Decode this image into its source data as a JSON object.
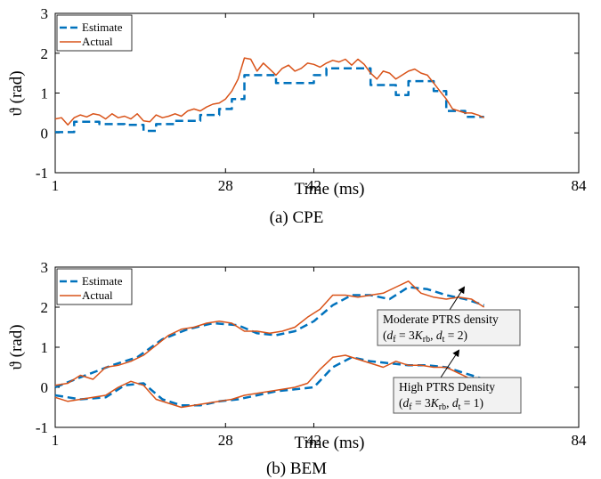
{
  "chart_data": [
    {
      "type": "line",
      "caption": "(a) CPE",
      "xlabel": "Time (ms)",
      "ylabel": "ϑ (rad)",
      "xlim": [
        1,
        84
      ],
      "ylim": [
        -1,
        3
      ],
      "x_ticks": [
        "1",
        "28",
        "42",
        "84"
      ],
      "y_ticks": [
        "-1",
        "0",
        "1",
        "2",
        "3"
      ],
      "grid": false,
      "legend": {
        "position": "top-left",
        "entries": [
          "Estimate",
          "Actual"
        ]
      },
      "series": [
        {
          "name": "Estimate",
          "style": "dashed",
          "color": "#0072BD",
          "points": [
            [
              1,
              0.02
            ],
            [
              4,
              0.02
            ],
            [
              4,
              0.28
            ],
            [
              8,
              0.28
            ],
            [
              8,
              0.22
            ],
            [
              12,
              0.22
            ],
            [
              12,
              0.2
            ],
            [
              15,
              0.2
            ],
            [
              15,
              0.05
            ],
            [
              17,
              0.05
            ],
            [
              17,
              0.22
            ],
            [
              20,
              0.22
            ],
            [
              20,
              0.3
            ],
            [
              24,
              0.3
            ],
            [
              24,
              0.45
            ],
            [
              27,
              0.45
            ],
            [
              27,
              0.6
            ],
            [
              29,
              0.6
            ],
            [
              29,
              0.85
            ],
            [
              31,
              0.85
            ],
            [
              31,
              1.45
            ],
            [
              36,
              1.45
            ],
            [
              36,
              1.25
            ],
            [
              42,
              1.25
            ],
            [
              42,
              1.45
            ],
            [
              44,
              1.45
            ],
            [
              44,
              1.62
            ],
            [
              51,
              1.62
            ],
            [
              51,
              1.2
            ],
            [
              55,
              1.2
            ],
            [
              55,
              0.95
            ],
            [
              57,
              0.95
            ],
            [
              57,
              1.3
            ],
            [
              61,
              1.3
            ],
            [
              61,
              1.05
            ],
            [
              63,
              1.05
            ],
            [
              63,
              0.55
            ],
            [
              66,
              0.55
            ],
            [
              66,
              0.4
            ],
            [
              69,
              0.4
            ]
          ]
        },
        {
          "name": "Actual",
          "style": "solid",
          "color": "#D95319",
          "points": [
            [
              1,
              0.35
            ],
            [
              2,
              0.38
            ],
            [
              3,
              0.2
            ],
            [
              4,
              0.38
            ],
            [
              5,
              0.45
            ],
            [
              6,
              0.4
            ],
            [
              7,
              0.48
            ],
            [
              8,
              0.45
            ],
            [
              9,
              0.35
            ],
            [
              10,
              0.48
            ],
            [
              11,
              0.38
            ],
            [
              12,
              0.42
            ],
            [
              13,
              0.35
            ],
            [
              14,
              0.48
            ],
            [
              15,
              0.3
            ],
            [
              16,
              0.28
            ],
            [
              17,
              0.45
            ],
            [
              18,
              0.38
            ],
            [
              19,
              0.42
            ],
            [
              20,
              0.48
            ],
            [
              21,
              0.42
            ],
            [
              22,
              0.55
            ],
            [
              23,
              0.6
            ],
            [
              24,
              0.55
            ],
            [
              25,
              0.65
            ],
            [
              26,
              0.72
            ],
            [
              27,
              0.75
            ],
            [
              28,
              0.85
            ],
            [
              29,
              1.05
            ],
            [
              30,
              1.35
            ],
            [
              31,
              1.88
            ],
            [
              32,
              1.85
            ],
            [
              33,
              1.55
            ],
            [
              34,
              1.75
            ],
            [
              35,
              1.6
            ],
            [
              36,
              1.45
            ],
            [
              37,
              1.62
            ],
            [
              38,
              1.7
            ],
            [
              39,
              1.55
            ],
            [
              40,
              1.62
            ],
            [
              41,
              1.75
            ],
            [
              42,
              1.72
            ],
            [
              43,
              1.65
            ],
            [
              44,
              1.75
            ],
            [
              45,
              1.82
            ],
            [
              46,
              1.78
            ],
            [
              47,
              1.85
            ],
            [
              48,
              1.7
            ],
            [
              49,
              1.85
            ],
            [
              50,
              1.72
            ],
            [
              51,
              1.5
            ],
            [
              52,
              1.35
            ],
            [
              53,
              1.55
            ],
            [
              54,
              1.5
            ],
            [
              55,
              1.35
            ],
            [
              56,
              1.45
            ],
            [
              57,
              1.55
            ],
            [
              58,
              1.6
            ],
            [
              59,
              1.5
            ],
            [
              60,
              1.45
            ],
            [
              61,
              1.25
            ],
            [
              62,
              1.05
            ],
            [
              63,
              0.85
            ],
            [
              64,
              0.6
            ],
            [
              65,
              0.55
            ],
            [
              66,
              0.5
            ],
            [
              67,
              0.5
            ],
            [
              68,
              0.45
            ],
            [
              69,
              0.38
            ]
          ]
        }
      ]
    },
    {
      "type": "line",
      "caption": "(b) BEM",
      "xlabel": "Time (ms)",
      "ylabel": "ϑ (rad)",
      "xlim": [
        1,
        84
      ],
      "ylim": [
        -1,
        3
      ],
      "x_ticks": [
        "1",
        "28",
        "42",
        "84"
      ],
      "y_ticks": [
        "-1",
        "0",
        "1",
        "2",
        "3"
      ],
      "grid": false,
      "legend": {
        "position": "top-left",
        "entries": [
          "Estimate",
          "Actual"
        ]
      },
      "series": [
        {
          "name": "Estimate",
          "style": "dashed",
          "color": "#0072BD",
          "points": [
            [
              1,
              0.0
            ],
            [
              5,
              0.25
            ],
            [
              10,
              0.55
            ],
            [
              14,
              0.75
            ],
            [
              18,
              1.2
            ],
            [
              22,
              1.45
            ],
            [
              26,
              1.6
            ],
            [
              30,
              1.55
            ],
            [
              33,
              1.35
            ],
            [
              36,
              1.3
            ],
            [
              39,
              1.4
            ],
            [
              42,
              1.65
            ],
            [
              45,
              2.05
            ],
            [
              48,
              2.3
            ],
            [
              51,
              2.3
            ],
            [
              54,
              2.2
            ],
            [
              57,
              2.5
            ],
            [
              60,
              2.45
            ],
            [
              63,
              2.3
            ],
            [
              66,
              2.2
            ],
            [
              69,
              2.05
            ]
          ]
        },
        {
          "name": "Actual",
          "style": "solid",
          "color": "#D95319",
          "points": [
            [
              1,
              0.05
            ],
            [
              3,
              0.1
            ],
            [
              5,
              0.3
            ],
            [
              7,
              0.2
            ],
            [
              9,
              0.5
            ],
            [
              11,
              0.55
            ],
            [
              13,
              0.65
            ],
            [
              15,
              0.8
            ],
            [
              17,
              1.05
            ],
            [
              19,
              1.3
            ],
            [
              21,
              1.45
            ],
            [
              23,
              1.5
            ],
            [
              25,
              1.6
            ],
            [
              27,
              1.65
            ],
            [
              29,
              1.6
            ],
            [
              31,
              1.4
            ],
            [
              33,
              1.4
            ],
            [
              35,
              1.35
            ],
            [
              37,
              1.4
            ],
            [
              39,
              1.5
            ],
            [
              41,
              1.75
            ],
            [
              43,
              1.95
            ],
            [
              45,
              2.3
            ],
            [
              47,
              2.3
            ],
            [
              49,
              2.25
            ],
            [
              51,
              2.3
            ],
            [
              53,
              2.35
            ],
            [
              55,
              2.5
            ],
            [
              57,
              2.65
            ],
            [
              59,
              2.35
            ],
            [
              61,
              2.25
            ],
            [
              63,
              2.2
            ],
            [
              65,
              2.25
            ],
            [
              67,
              2.2
            ],
            [
              69,
              2.0
            ]
          ]
        },
        {
          "name": "Estimate",
          "style": "dashed",
          "color": "#0072BD",
          "points": [
            [
              1,
              -0.2
            ],
            [
              5,
              -0.3
            ],
            [
              9,
              -0.25
            ],
            [
              12,
              0.05
            ],
            [
              15,
              0.1
            ],
            [
              18,
              -0.3
            ],
            [
              21,
              -0.45
            ],
            [
              24,
              -0.45
            ],
            [
              27,
              -0.35
            ],
            [
              30,
              -0.3
            ],
            [
              33,
              -0.2
            ],
            [
              36,
              -0.1
            ],
            [
              39,
              -0.05
            ],
            [
              42,
              0.0
            ],
            [
              45,
              0.5
            ],
            [
              48,
              0.75
            ],
            [
              51,
              0.65
            ],
            [
              54,
              0.6
            ],
            [
              57,
              0.55
            ],
            [
              60,
              0.55
            ],
            [
              63,
              0.5
            ],
            [
              66,
              0.35
            ],
            [
              69,
              0.2
            ]
          ]
        },
        {
          "name": "Actual",
          "style": "solid",
          "color": "#D95319",
          "points": [
            [
              1,
              -0.25
            ],
            [
              3,
              -0.35
            ],
            [
              5,
              -0.3
            ],
            [
              7,
              -0.25
            ],
            [
              9,
              -0.2
            ],
            [
              11,
              0.0
            ],
            [
              13,
              0.15
            ],
            [
              15,
              0.05
            ],
            [
              17,
              -0.3
            ],
            [
              19,
              -0.4
            ],
            [
              21,
              -0.5
            ],
            [
              23,
              -0.45
            ],
            [
              25,
              -0.4
            ],
            [
              27,
              -0.35
            ],
            [
              29,
              -0.3
            ],
            [
              31,
              -0.2
            ],
            [
              33,
              -0.15
            ],
            [
              35,
              -0.1
            ],
            [
              37,
              -0.05
            ],
            [
              39,
              0.0
            ],
            [
              41,
              0.1
            ],
            [
              43,
              0.45
            ],
            [
              45,
              0.75
            ],
            [
              47,
              0.8
            ],
            [
              49,
              0.7
            ],
            [
              51,
              0.6
            ],
            [
              53,
              0.5
            ],
            [
              55,
              0.65
            ],
            [
              57,
              0.55
            ],
            [
              59,
              0.55
            ],
            [
              61,
              0.5
            ],
            [
              63,
              0.5
            ],
            [
              65,
              0.35
            ],
            [
              67,
              0.2
            ],
            [
              69,
              0.2
            ]
          ]
        }
      ],
      "annotations": [
        {
          "line1": "Moderate PTRS density",
          "line2": "(d_f = 3K_rb,  d_t = 2)",
          "target": [
            57,
            2.5
          ]
        },
        {
          "line1": "High PTRS Density",
          "line2": "(d_f = 3K_rb,  d_t = 1)",
          "target": [
            56,
            0.85
          ]
        }
      ]
    }
  ]
}
